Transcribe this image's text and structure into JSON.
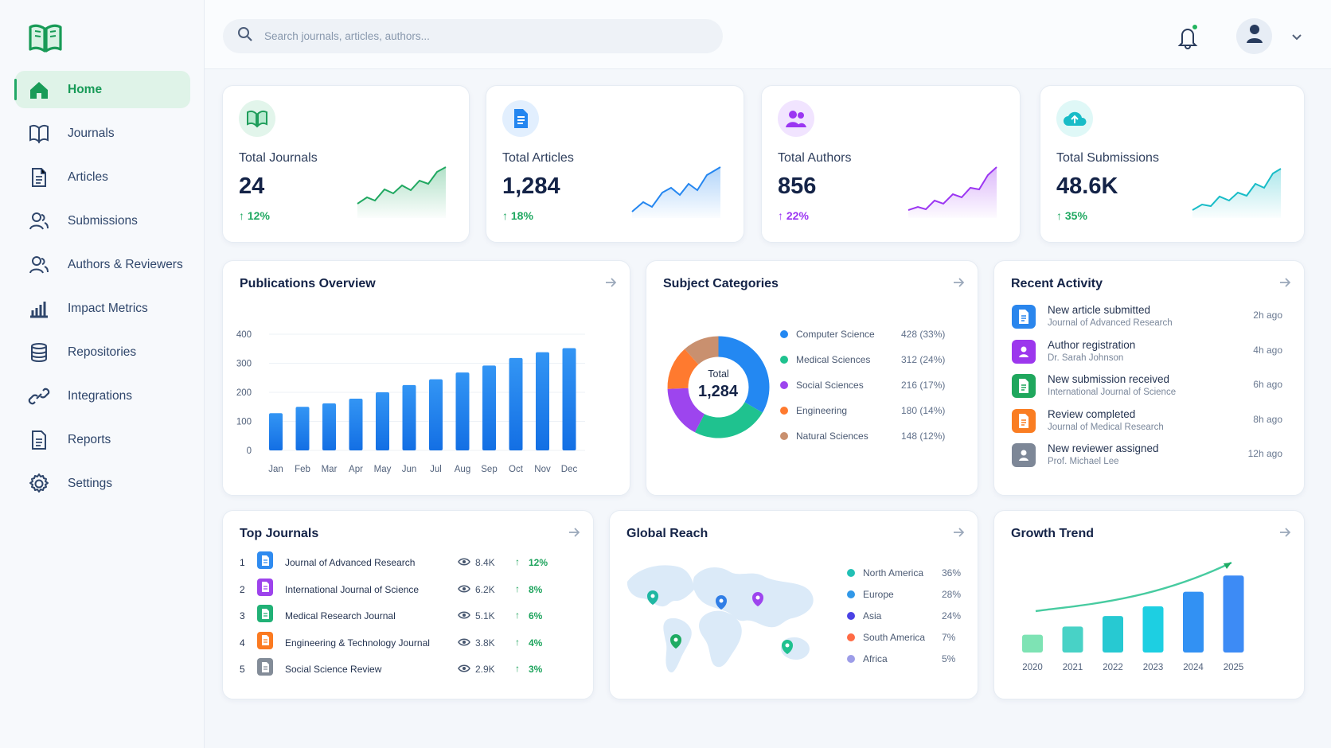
{
  "brand": {
    "logo_icon": "open-book-icon",
    "accent": "#1fab63"
  },
  "sidebar": {
    "items": [
      {
        "label": "Home",
        "icon": "home-icon",
        "active": true
      },
      {
        "label": "Journals",
        "icon": "book-icon"
      },
      {
        "label": "Articles",
        "icon": "document-icon"
      },
      {
        "label": "Submissions",
        "icon": "users-icon"
      },
      {
        "label": "Authors & Reviewers",
        "icon": "users-icon"
      },
      {
        "label": "Impact Metrics",
        "icon": "bar-chart-icon"
      },
      {
        "label": "Repositories",
        "icon": "database-icon"
      },
      {
        "label": "Integrations",
        "icon": "link-icon"
      },
      {
        "label": "Reports",
        "icon": "report-icon"
      },
      {
        "label": "Settings",
        "icon": "gear-icon"
      }
    ]
  },
  "topbar": {
    "search_placeholder": "Search journals, articles, authors..."
  },
  "stats": [
    {
      "label": "Total Journals",
      "value": "24",
      "delta": "12%",
      "color": "#20a861",
      "icon": "book-icon"
    },
    {
      "label": "Total Articles",
      "value": "1,284",
      "delta": "18%",
      "color": "#2486f0",
      "icon": "document-icon"
    },
    {
      "label": "Total Authors",
      "value": "856",
      "delta": "22%",
      "color": "#9b35f2",
      "icon": "users-icon"
    },
    {
      "label": "Total Submissions",
      "value": "48.6K",
      "delta": "35%",
      "color": "#18bcc7",
      "icon": "cloud-upload-icon"
    }
  ],
  "publications": {
    "title": "Publications Overview"
  },
  "subjects": {
    "title": "Subject Categories",
    "total_label": "Total",
    "total_value": "1,284",
    "items": [
      {
        "name": "Computer Science",
        "value": "428 (33%)",
        "color": "#2388f2"
      },
      {
        "name": "Medical Sciences",
        "value": "312 (24%)",
        "color": "#1fc28f"
      },
      {
        "name": "Social Sciences",
        "value": "216 (17%)",
        "color": "#9d45ee"
      },
      {
        "name": "Engineering",
        "value": "180 (14%)",
        "color": "#ff7a2f"
      },
      {
        "name": "Natural Sciences",
        "value": "148 (12%)",
        "color": "#c9906f"
      }
    ]
  },
  "activity": {
    "title": "Recent Activity",
    "items": [
      {
        "title": "New article submitted",
        "subtitle": "Journal of Advanced Research",
        "time": "2h ago",
        "color": "#2a86ed",
        "icon": "document-icon"
      },
      {
        "title": "Author registration",
        "subtitle": "Dr. Sarah Johnson",
        "time": "4h ago",
        "color": "#9c37ed",
        "icon": "user-icon"
      },
      {
        "title": "New submission received",
        "subtitle": "International Journal of Science",
        "time": "6h ago",
        "color": "#1fa75d",
        "icon": "document-icon"
      },
      {
        "title": "Review completed",
        "subtitle": "Journal of Medical Research",
        "time": "8h ago",
        "color": "#fa7d22",
        "icon": "document-icon"
      },
      {
        "title": "New reviewer assigned",
        "subtitle": "Prof. Michael Lee",
        "time": "12h ago",
        "color": "#7d8797",
        "icon": "user-icon"
      }
    ]
  },
  "top_journals": {
    "title": "Top Journals",
    "items": [
      {
        "rank": "1",
        "name": "Journal of Advanced Research",
        "views": "8.4K",
        "delta": "12%",
        "color": "#2f8bf0"
      },
      {
        "rank": "2",
        "name": "International Journal of Science",
        "views": "6.2K",
        "delta": "8%",
        "color": "#9d43ec"
      },
      {
        "rank": "3",
        "name": "Medical Research Journal",
        "views": "5.1K",
        "delta": "6%",
        "color": "#21b176"
      },
      {
        "rank": "4",
        "name": "Engineering & Technology Journal",
        "views": "3.8K",
        "delta": "4%",
        "color": "#fb7a21"
      },
      {
        "rank": "5",
        "name": "Social Science Review",
        "views": "2.9K",
        "delta": "3%",
        "color": "#838c98"
      }
    ]
  },
  "global_reach": {
    "title": "Global Reach",
    "regions": [
      {
        "name": "North America",
        "value": "36%",
        "color": "#22c0b5"
      },
      {
        "name": "Europe",
        "value": "28%",
        "color": "#3198e8"
      },
      {
        "name": "Asia",
        "value": "24%",
        "color": "#4b42e5"
      },
      {
        "name": "South America",
        "value": "7%",
        "color": "#ff6b45"
      },
      {
        "name": "Africa",
        "value": "5%",
        "color": "#9d9de8"
      }
    ]
  },
  "growth": {
    "title": "Growth Trend"
  },
  "chart_data": [
    {
      "type": "bar",
      "title": "Publications Overview",
      "categories": [
        "Jan",
        "Feb",
        "Mar",
        "Apr",
        "May",
        "Jun",
        "Jul",
        "Aug",
        "Sep",
        "Oct",
        "Nov",
        "Dec"
      ],
      "series": [
        {
          "values": [
            128,
            150,
            162,
            178,
            200,
            225,
            245,
            268,
            292,
            318,
            338,
            352
          ]
        }
      ],
      "ylim": [
        0,
        400
      ],
      "yticks": [
        "0",
        "100",
        "200",
        "300",
        "400"
      ]
    },
    {
      "type": "pie",
      "title": "Subject Categories",
      "categories": [
        "Computer Science",
        "Medical Sciences",
        "Social Sciences",
        "Engineering",
        "Natural Sciences"
      ],
      "values": [
        428,
        312,
        216,
        180,
        148
      ]
    },
    {
      "type": "bar",
      "title": "Growth Trend",
      "categories": [
        "2020",
        "2021",
        "2022",
        "2023",
        "2024",
        "2025"
      ],
      "values": [
        22,
        32,
        45,
        57,
        75,
        95
      ],
      "ylim": [
        0,
        110
      ]
    }
  ]
}
